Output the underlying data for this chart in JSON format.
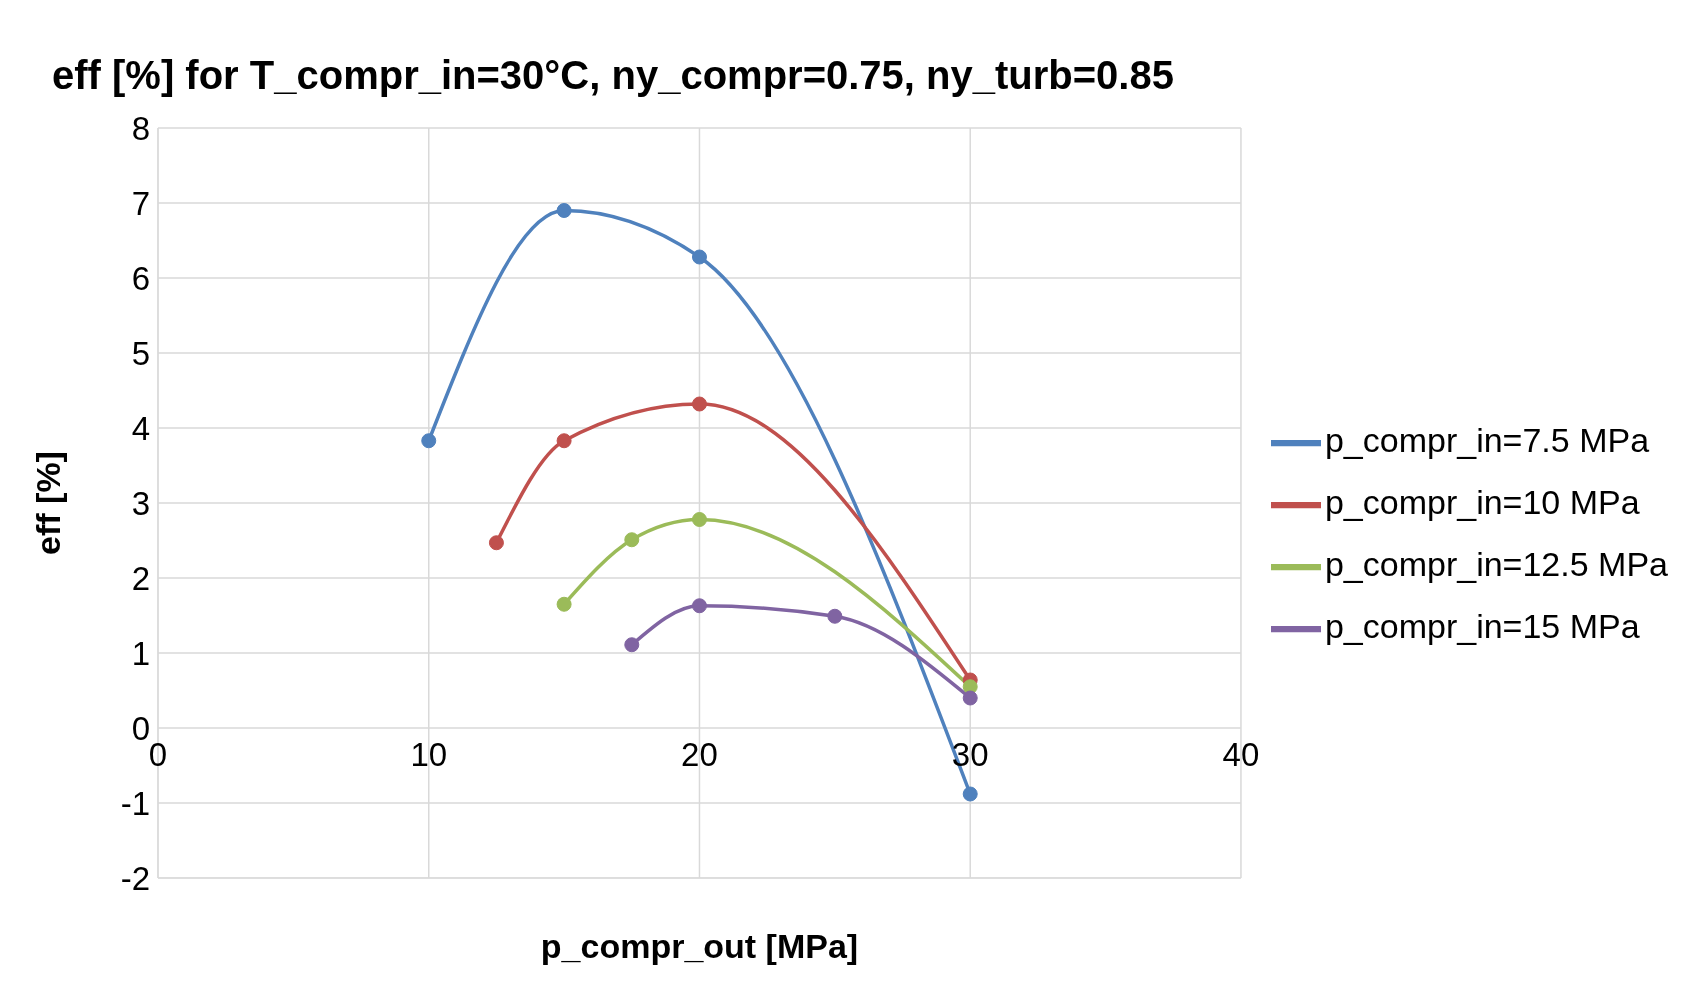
{
  "chart_data": {
    "type": "line",
    "title": "eff [%] for T_compr_in=30°C, ny_compr=0.75, ny_turb=0.85",
    "xlabel": "p_compr_out [MPa]",
    "ylabel": "eff [%]",
    "series": [
      {
        "name": "p_compr_in=7.5 MPa",
        "color": "#4f81bd",
        "x": [
          10,
          15,
          20,
          30
        ],
        "values": [
          3.83,
          6.9,
          6.28,
          -0.88
        ]
      },
      {
        "name": "p_compr_in=10 MPa",
        "color": "#c0504d",
        "x": [
          12.5,
          15,
          20,
          30
        ],
        "values": [
          2.47,
          3.83,
          4.32,
          0.64
        ]
      },
      {
        "name": "p_compr_in=12.5 MPa",
        "color": "#9bbb59",
        "x": [
          15,
          17.5,
          20,
          30
        ],
        "values": [
          1.65,
          2.51,
          2.78,
          0.55
        ]
      },
      {
        "name": "p_compr_in=15 MPa",
        "color": "#8064a2",
        "x": [
          17.5,
          20,
          25,
          30
        ],
        "values": [
          1.11,
          1.63,
          1.49,
          0.4
        ]
      }
    ],
    "xlim": [
      0,
      40
    ],
    "xticks": [
      0,
      10,
      20,
      30,
      40
    ],
    "ylim": [
      -2,
      8
    ],
    "yticks": [
      -2,
      -1,
      0,
      1,
      2,
      3,
      4,
      5,
      6,
      7,
      8
    ],
    "grid": true,
    "legend": "right",
    "marker": "circle",
    "line_style": "solid"
  }
}
